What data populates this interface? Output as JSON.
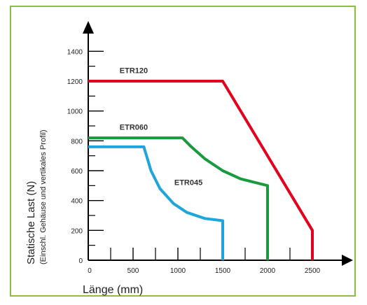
{
  "chart_data": {
    "type": "line",
    "xlabel": "Länge (mm)",
    "ylabel": "Statische Last (N)",
    "ylabel_sub": "(Einschl. Gehäuse und vertikales Profil)",
    "xlim": [
      0,
      2750
    ],
    "ylim": [
      0,
      1550
    ],
    "x_ticks": [
      0,
      500,
      1000,
      1500,
      2000,
      2500
    ],
    "x_minor_ticks": [
      250,
      750,
      1250,
      1750,
      2250
    ],
    "y_ticks": [
      0,
      200,
      400,
      600,
      800,
      1000,
      1200,
      1400
    ],
    "y_minor_ticks": [
      100,
      300,
      500,
      700,
      900,
      1100,
      1300
    ],
    "grid": false,
    "legend": "none",
    "series": [
      {
        "name": "ETR120",
        "color": "#e3001b",
        "points": [
          [
            0,
            1200
          ],
          [
            1500,
            1200
          ],
          [
            2500,
            200
          ],
          [
            2500,
            0
          ]
        ]
      },
      {
        "name": "ETR060",
        "color": "#1a9a3f",
        "points": [
          [
            0,
            820
          ],
          [
            1050,
            820
          ],
          [
            1150,
            760
          ],
          [
            1300,
            680
          ],
          [
            1500,
            600
          ],
          [
            1700,
            545
          ],
          [
            2000,
            500
          ],
          [
            2000,
            0
          ]
        ]
      },
      {
        "name": "ETR045",
        "color": "#1ea6dc",
        "points": [
          [
            0,
            760
          ],
          [
            620,
            760
          ],
          [
            700,
            600
          ],
          [
            800,
            480
          ],
          [
            950,
            380
          ],
          [
            1100,
            320
          ],
          [
            1300,
            280
          ],
          [
            1500,
            265
          ],
          [
            1500,
            0
          ]
        ]
      }
    ],
    "annotations": [
      {
        "text": "ETR120",
        "x": 350,
        "y": 1255
      },
      {
        "text": "ETR060",
        "x": 350,
        "y": 875
      },
      {
        "text": "ETR045",
        "x": 960,
        "y": 505
      }
    ]
  }
}
